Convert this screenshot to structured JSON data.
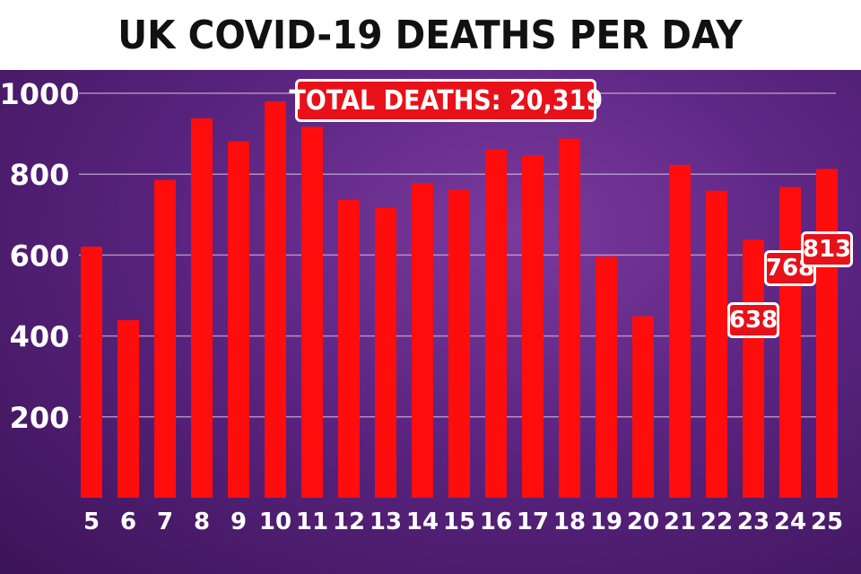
{
  "title": "UK COVID-19 DEATHS PER DAY",
  "total_label": "TOTAL DEATHS: 20,319",
  "colors": {
    "bar": "#ff0d0d",
    "label_box": "#e8111a",
    "background": "#5a2480",
    "gridline": "#c9b3d8"
  },
  "chart_data": {
    "type": "bar",
    "title": "UK COVID-19 DEATHS PER DAY",
    "xlabel": "",
    "ylabel": "",
    "ylim": [
      0,
      1000
    ],
    "yticks": [
      200,
      400,
      600,
      800,
      1000
    ],
    "grid": true,
    "categories": [
      "5",
      "6",
      "7",
      "8",
      "9",
      "10",
      "11",
      "12",
      "13",
      "14",
      "15",
      "16",
      "17",
      "18",
      "19",
      "20",
      "21",
      "22",
      "23",
      "24",
      "25"
    ],
    "values": [
      621,
      439,
      786,
      938,
      881,
      980,
      917,
      737,
      717,
      778,
      761,
      861,
      847,
      888,
      596,
      449,
      823,
      759,
      638,
      768,
      813
    ],
    "data_labels": [
      {
        "category": "23",
        "text": "638"
      },
      {
        "category": "24",
        "text": "768"
      },
      {
        "category": "25",
        "text": "813"
      }
    ]
  }
}
